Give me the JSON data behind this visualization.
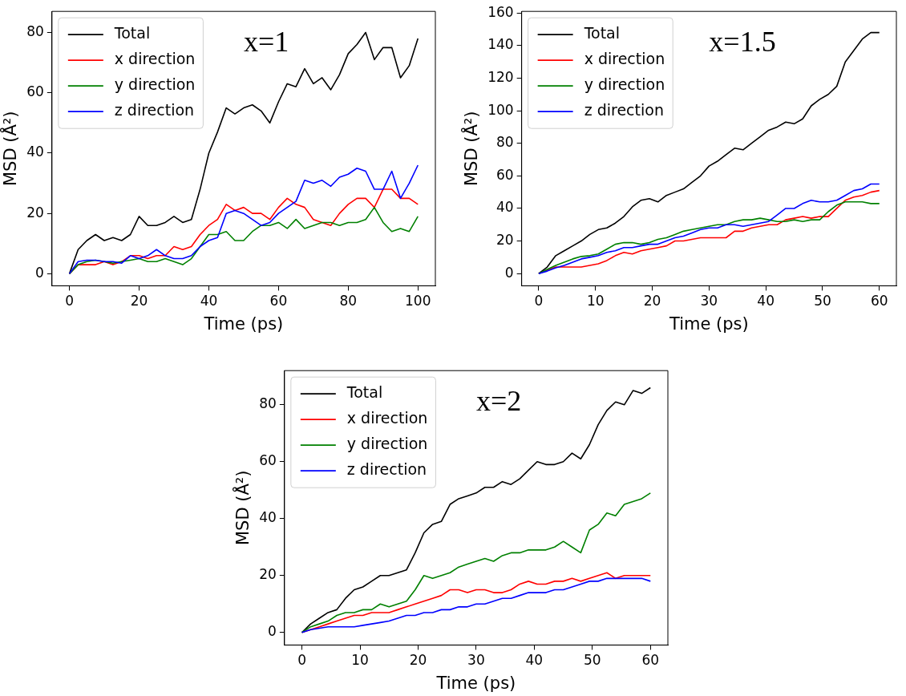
{
  "chart_data": [
    {
      "type": "line",
      "xlabel": "Time (ps)",
      "ylabel": "MSD (Å²)",
      "annotations": [
        "x=1"
      ],
      "legend": "top left",
      "grid": false,
      "xlim": [
        -5,
        105
      ],
      "xticks": [
        0,
        20,
        40,
        60,
        80,
        100
      ],
      "ylim": [
        -4,
        87
      ],
      "yticks": [
        0,
        20,
        40,
        60,
        80
      ],
      "x": [
        0,
        2.5,
        5,
        7.5,
        10,
        12.5,
        15,
        17.5,
        20,
        22.5,
        25,
        27.5,
        30,
        32.5,
        35,
        37.5,
        40,
        42.5,
        45,
        47.5,
        50,
        52.5,
        55,
        57.5,
        60,
        62.5,
        65,
        67.5,
        70,
        72.5,
        75,
        77.5,
        80,
        82.5,
        85,
        87.5,
        90,
        92.5,
        95,
        97.5,
        100
      ],
      "series": [
        {
          "name": "Total",
          "color": "#000000",
          "values": [
            0,
            8,
            11,
            13,
            11,
            12,
            11,
            13,
            19,
            16,
            16,
            17,
            19,
            17,
            18,
            28,
            40,
            47,
            55,
            53,
            55,
            56,
            54,
            50,
            57,
            63,
            62,
            68,
            63,
            65,
            61,
            66,
            73,
            76,
            80,
            71,
            75,
            75,
            65,
            69,
            78
          ]
        },
        {
          "name": "x direction",
          "color": "#ff0000",
          "values": [
            0,
            3,
            3,
            3,
            4,
            3,
            4,
            6,
            6,
            5,
            6,
            6,
            9,
            8,
            9,
            13,
            16,
            18,
            23,
            21,
            22,
            20,
            20,
            18,
            22,
            25,
            23,
            22,
            18,
            17,
            16,
            20,
            23,
            25,
            25,
            22,
            28,
            28,
            25,
            25,
            23
          ]
        },
        {
          "name": "y direction",
          "color": "#008000",
          "values": [
            0,
            3,
            4,
            4.5,
            4,
            3.5,
            4,
            4.5,
            5,
            4,
            4,
            5,
            4,
            3,
            5,
            9,
            13,
            13,
            14,
            11,
            11,
            14,
            16,
            16,
            17,
            15,
            18,
            15,
            16,
            17,
            17,
            16,
            17,
            17,
            18,
            22,
            17,
            14,
            15,
            14,
            19
          ]
        },
        {
          "name": "z direction",
          "color": "#0000ff",
          "values": [
            0,
            4,
            4.5,
            4.5,
            4,
            4,
            3.5,
            6,
            5,
            6,
            8,
            6,
            5,
            5,
            6,
            9,
            11,
            12,
            20,
            21,
            20,
            18,
            16,
            17,
            20,
            22,
            24,
            31,
            30,
            31,
            29,
            32,
            33,
            35,
            34,
            28,
            28,
            34,
            25,
            30,
            36
          ]
        }
      ]
    },
    {
      "type": "line",
      "xlabel": "Time (ps)",
      "ylabel": "MSD (Å²)",
      "annotations": [
        "x=1.5"
      ],
      "legend": "top left",
      "grid": false,
      "xlim": [
        -3,
        63
      ],
      "xticks": [
        0,
        10,
        20,
        30,
        40,
        50,
        60
      ],
      "ylim": [
        -7.5,
        161
      ],
      "yticks": [
        0,
        20,
        40,
        60,
        80,
        100,
        120,
        140,
        160
      ],
      "x": [
        0,
        1.5,
        3,
        4.5,
        6,
        7.5,
        9,
        10.5,
        12,
        13.5,
        15,
        16.5,
        18,
        19.5,
        21,
        22.5,
        24,
        25.5,
        27,
        28.5,
        30,
        31.5,
        33,
        34.5,
        36,
        37.5,
        39,
        40.5,
        42,
        43.5,
        45,
        46.5,
        48,
        49.5,
        51,
        52.5,
        54,
        55.5,
        57,
        58.5,
        60
      ],
      "series": [
        {
          "name": "Total",
          "color": "#000000",
          "values": [
            0,
            4,
            11,
            14,
            17,
            20,
            24,
            27,
            28,
            31,
            35,
            41,
            45,
            46,
            44,
            48,
            50,
            52,
            56,
            60,
            66,
            69,
            73,
            77,
            76,
            80,
            84,
            88,
            90,
            93,
            92,
            95,
            103,
            107,
            110,
            115,
            130,
            137,
            144,
            148,
            148
          ]
        },
        {
          "name": "x direction",
          "color": "#ff0000",
          "values": [
            0,
            2,
            4,
            4,
            4,
            4,
            5,
            6,
            8,
            11,
            13,
            12,
            14,
            15,
            16,
            17,
            20,
            20,
            21,
            22,
            22,
            22,
            22,
            26,
            26,
            28,
            29,
            30,
            30,
            33,
            34,
            35,
            34,
            35,
            35,
            40,
            45,
            47,
            48,
            50,
            51
          ]
        },
        {
          "name": "y direction",
          "color": "#008000",
          "values": [
            0,
            2.5,
            5,
            7,
            9,
            10.5,
            11,
            12,
            15,
            18,
            19,
            19,
            18,
            19,
            21,
            22,
            24,
            26,
            27,
            28,
            29,
            30,
            30,
            32,
            33,
            33,
            34,
            33,
            32,
            32,
            33,
            32,
            33,
            33,
            38,
            42,
            44,
            44,
            44,
            43,
            43
          ]
        },
        {
          "name": "z direction",
          "color": "#0000ff",
          "values": [
            0,
            1.5,
            3.5,
            5,
            7,
            9,
            10,
            11,
            13,
            14,
            16,
            16,
            17,
            18,
            18,
            20,
            22,
            23,
            25,
            27,
            28,
            28,
            30,
            30,
            29,
            30,
            31,
            32,
            36,
            40,
            40,
            43,
            45,
            44,
            44,
            45,
            48,
            51,
            52,
            55,
            55
          ]
        }
      ]
    },
    {
      "type": "line",
      "xlabel": "Time (ps)",
      "ylabel": "MSD (Å²)",
      "annotations": [
        "x=2"
      ],
      "legend": "top left",
      "grid": false,
      "xlim": [
        -3,
        63
      ],
      "xticks": [
        0,
        10,
        20,
        30,
        40,
        50,
        60
      ],
      "ylim": [
        -4.4,
        92
      ],
      "yticks": [
        0,
        20,
        40,
        60,
        80
      ],
      "x": [
        0,
        1.5,
        3,
        4.5,
        6,
        7.5,
        9,
        10.5,
        12,
        13.5,
        15,
        16.5,
        18,
        19.5,
        21,
        22.5,
        24,
        25.5,
        27,
        28.5,
        30,
        31.5,
        33,
        34.5,
        36,
        37.5,
        39,
        40.5,
        42,
        43.5,
        45,
        46.5,
        48,
        49.5,
        51,
        52.5,
        54,
        55.5,
        57,
        58.5,
        60
      ],
      "series": [
        {
          "name": "Total",
          "color": "#000000",
          "values": [
            0,
            3,
            5,
            7,
            8,
            12,
            15,
            16,
            18,
            20,
            20,
            21,
            22,
            28,
            35,
            38,
            39,
            45,
            47,
            48,
            49,
            51,
            51,
            53,
            52,
            54,
            57,
            60,
            59,
            59,
            60,
            63,
            61,
            66,
            73,
            78,
            81,
            80,
            85,
            84,
            86
          ]
        },
        {
          "name": "x direction",
          "color": "#ff0000",
          "values": [
            0,
            1,
            2,
            3,
            4,
            5,
            6,
            6,
            7,
            7,
            7,
            8,
            9,
            10,
            11,
            12,
            13,
            15,
            15,
            14,
            15,
            15,
            14,
            14,
            15,
            17,
            18,
            17,
            17,
            18,
            18,
            19,
            18,
            19,
            20,
            21,
            19,
            20,
            20,
            20,
            20
          ]
        },
        {
          "name": "y direction",
          "color": "#008000",
          "values": [
            0,
            2,
            3,
            4,
            6,
            7,
            7,
            8,
            8,
            10,
            9,
            10,
            11,
            15,
            20,
            19,
            20,
            21,
            23,
            24,
            25,
            26,
            25,
            27,
            28,
            28,
            29,
            29,
            29,
            30,
            32,
            30,
            28,
            36,
            38,
            42,
            41,
            45,
            46,
            47,
            49
          ]
        },
        {
          "name": "z direction",
          "color": "#0000ff",
          "values": [
            0,
            1,
            1.5,
            2,
            2,
            2,
            2,
            2.5,
            3,
            3.5,
            4,
            5,
            6,
            6,
            7,
            7,
            8,
            8,
            9,
            9,
            10,
            10,
            11,
            12,
            12,
            13,
            14,
            14,
            14,
            15,
            15,
            16,
            17,
            18,
            18,
            19,
            19,
            19,
            19,
            19,
            18
          ]
        }
      ]
    }
  ]
}
